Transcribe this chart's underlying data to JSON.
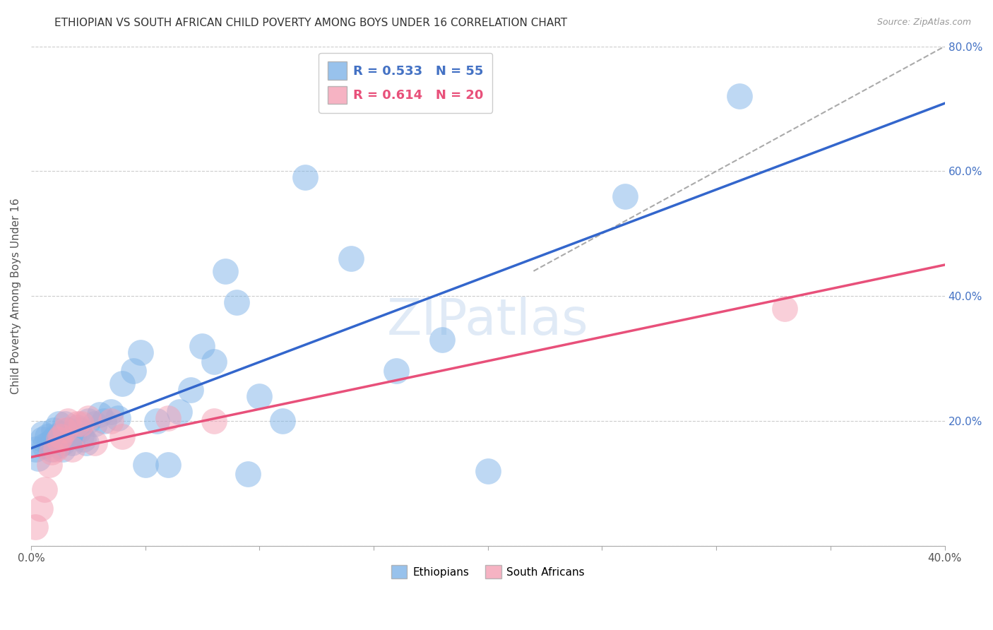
{
  "title": "ETHIOPIAN VS SOUTH AFRICAN CHILD POVERTY AMONG BOYS UNDER 16 CORRELATION CHART",
  "source": "Source: ZipAtlas.com",
  "ylabel": "Child Poverty Among Boys Under 16",
  "xlim": [
    0.0,
    0.4
  ],
  "ylim": [
    0.0,
    0.8
  ],
  "xticks": [
    0.0,
    0.05,
    0.1,
    0.15,
    0.2,
    0.25,
    0.3,
    0.35,
    0.4
  ],
  "yticks": [
    0.0,
    0.2,
    0.4,
    0.6,
    0.8
  ],
  "xtick_labels": [
    "0.0%",
    "",
    "",
    "",
    "",
    "",
    "",
    "",
    "40.0%"
  ],
  "ytick_labels": [
    "",
    "20.0%",
    "40.0%",
    "60.0%",
    "80.0%"
  ],
  "legend1_label": "R = 0.533   N = 55",
  "legend2_label": "R = 0.614   N = 20",
  "legend_bottom_label1": "Ethiopians",
  "legend_bottom_label2": "South Africans",
  "ethiopian_color": "#7EB3E8",
  "sa_color": "#F4A0B5",
  "trendline_eth_color": "#3366CC",
  "trendline_sa_color": "#E8507A",
  "trendline_dashed_color": "#AAAAAA",
  "watermark": "ZIPatlas",
  "eth_x": [
    0.002,
    0.003,
    0.005,
    0.005,
    0.006,
    0.007,
    0.008,
    0.009,
    0.01,
    0.01,
    0.011,
    0.012,
    0.012,
    0.013,
    0.014,
    0.014,
    0.015,
    0.015,
    0.016,
    0.017,
    0.018,
    0.019,
    0.02,
    0.021,
    0.022,
    0.023,
    0.024,
    0.025,
    0.028,
    0.03,
    0.032,
    0.035,
    0.038,
    0.04,
    0.045,
    0.048,
    0.05,
    0.055,
    0.06,
    0.065,
    0.07,
    0.075,
    0.08,
    0.085,
    0.09,
    0.095,
    0.1,
    0.11,
    0.12,
    0.14,
    0.16,
    0.18,
    0.2,
    0.26,
    0.31
  ],
  "eth_y": [
    0.155,
    0.14,
    0.17,
    0.18,
    0.16,
    0.175,
    0.165,
    0.155,
    0.17,
    0.185,
    0.175,
    0.16,
    0.195,
    0.18,
    0.165,
    0.155,
    0.17,
    0.195,
    0.185,
    0.175,
    0.165,
    0.18,
    0.19,
    0.185,
    0.175,
    0.17,
    0.165,
    0.2,
    0.195,
    0.21,
    0.2,
    0.215,
    0.205,
    0.26,
    0.28,
    0.31,
    0.13,
    0.2,
    0.13,
    0.215,
    0.25,
    0.32,
    0.295,
    0.44,
    0.39,
    0.115,
    0.24,
    0.2,
    0.59,
    0.46,
    0.28,
    0.33,
    0.12,
    0.56,
    0.72
  ],
  "sa_x": [
    0.002,
    0.004,
    0.006,
    0.008,
    0.009,
    0.011,
    0.012,
    0.013,
    0.015,
    0.016,
    0.018,
    0.02,
    0.022,
    0.025,
    0.028,
    0.035,
    0.04,
    0.06,
    0.08,
    0.33
  ],
  "sa_y": [
    0.03,
    0.06,
    0.09,
    0.13,
    0.15,
    0.155,
    0.17,
    0.175,
    0.185,
    0.2,
    0.155,
    0.195,
    0.195,
    0.205,
    0.165,
    0.2,
    0.175,
    0.205,
    0.2,
    0.38
  ],
  "background_color": "#FFFFFF",
  "grid_color": "#CCCCCC",
  "tick_color": "#4472C4"
}
